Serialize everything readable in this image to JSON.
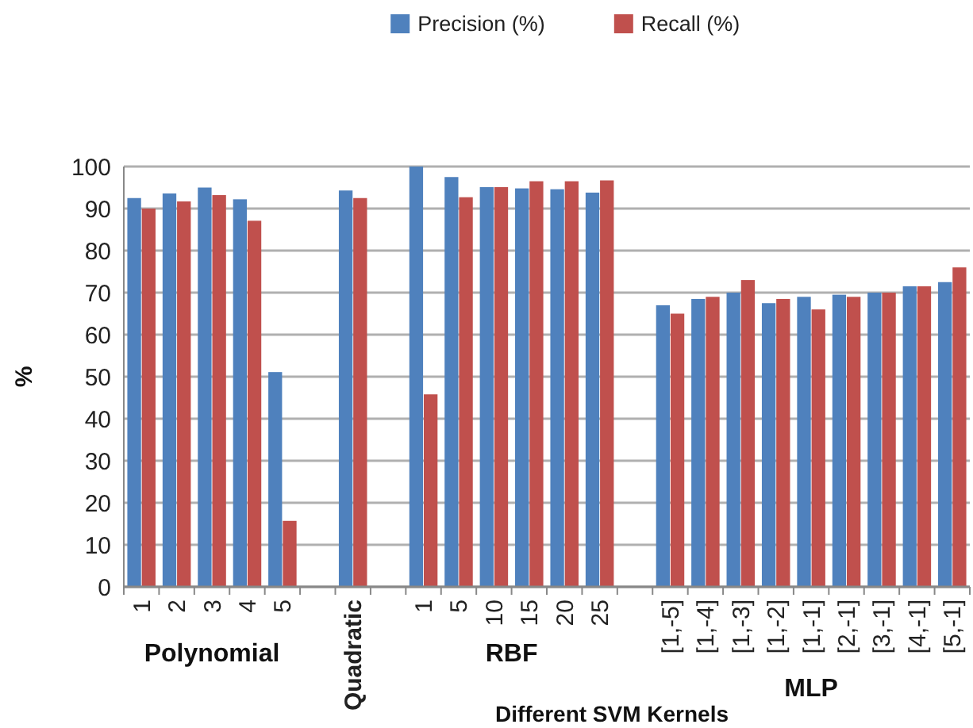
{
  "chart_data": {
    "type": "bar",
    "xlabel": "Different SVM Kernels",
    "ylabel": "%",
    "categories": [
      "1",
      "2",
      "3",
      "4",
      "5",
      null,
      "Quadratic",
      null,
      "1",
      "5",
      "10",
      "15",
      "20",
      "25",
      null,
      "[1,-5]",
      "[1,-4]",
      "[1,-3]",
      "[1,-2]",
      "[1,-1]",
      "[2,-1]",
      "[3,-1]",
      "[4,-1]",
      "[5,-1]"
    ],
    "series": [
      {
        "name": "Precision (%)",
        "color": "#4f81bd",
        "values": [
          92.5,
          93.6,
          95,
          92.2,
          51.1,
          null,
          94.3,
          null,
          100,
          97.5,
          95.1,
          94.8,
          94.6,
          93.8,
          null,
          67,
          68.5,
          70,
          67.5,
          69,
          69.5,
          70,
          71.5,
          72.5
        ]
      },
      {
        "name": "Recall (%)",
        "color": "#c0504d",
        "values": [
          90,
          91.7,
          93.2,
          87.1,
          15.7,
          null,
          92.5,
          null,
          45.8,
          92.7,
          95.1,
          96.5,
          96.5,
          96.7,
          null,
          65,
          69,
          73,
          68.5,
          66,
          69,
          70,
          71.5,
          76
        ]
      }
    ],
    "annotations": [
      "Polynomial",
      "RBF",
      "MLP"
    ],
    "ylim": [
      0,
      100
    ],
    "yticks": [
      0,
      10,
      20,
      30,
      40,
      50,
      60,
      70,
      80,
      90,
      100
    ],
    "grid": "y",
    "legend": "top"
  }
}
